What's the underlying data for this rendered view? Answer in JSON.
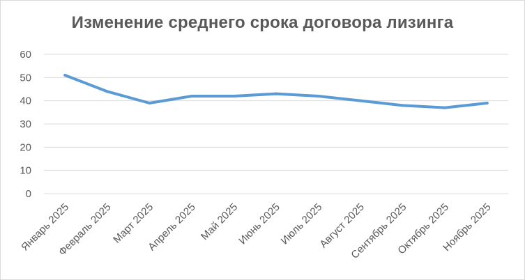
{
  "chart_data": {
    "type": "line",
    "title": "Изменение среднего срока договора лизинга",
    "xlabel": "",
    "ylabel": "",
    "categories": [
      "Январь 2025",
      "Февраль 2025",
      "Март 2025",
      "Апрель 2025",
      "Май 2025",
      "Июнь 2025",
      "Июль 2025",
      "Август 2025",
      "Сентябрь 2025",
      "Октябрь 2025",
      "Ноябрь 2025"
    ],
    "series": [
      {
        "values": [
          51,
          44,
          39,
          42,
          42,
          43,
          42,
          40,
          38,
          37,
          39
        ]
      }
    ],
    "ylim": [
      0,
      60
    ],
    "yticks": [
      0,
      10,
      20,
      30,
      40,
      50,
      60
    ],
    "grid": true,
    "legend": "none",
    "colors": {
      "line": "#5b9bd5",
      "grid": "#d9d9d9",
      "text": "#595959"
    }
  }
}
